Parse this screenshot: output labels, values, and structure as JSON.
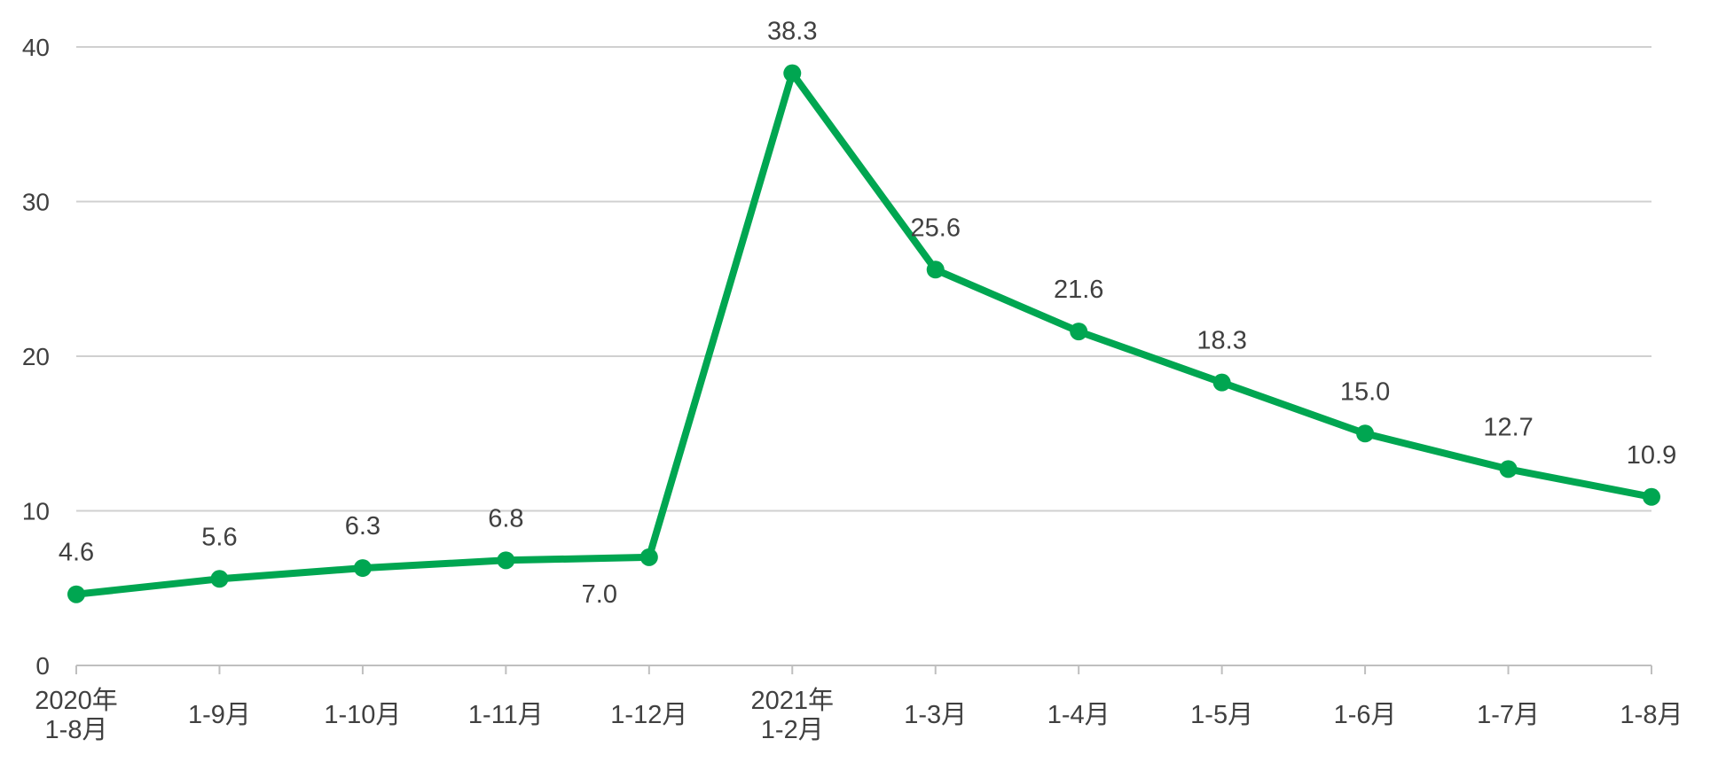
{
  "chart_data": {
    "type": "line",
    "categories": [
      [
        "2020年",
        "1-8月"
      ],
      [
        "1-9月"
      ],
      [
        "1-10月"
      ],
      [
        "1-11月"
      ],
      [
        "1-12月"
      ],
      [
        "2021年",
        "1-2月"
      ],
      [
        "1-3月"
      ],
      [
        "1-4月"
      ],
      [
        "1-5月"
      ],
      [
        "1-6月"
      ],
      [
        "1-7月"
      ],
      [
        "1-8月"
      ]
    ],
    "values": [
      4.6,
      5.6,
      6.3,
      6.8,
      7.0,
      38.3,
      25.6,
      21.6,
      18.3,
      15.0,
      12.7,
      10.9
    ],
    "data_labels": [
      "4.6",
      "5.6",
      "6.3",
      "6.8",
      "7.0",
      "38.3",
      "25.6",
      "21.6",
      "18.3",
      "15.0",
      "12.7",
      "10.9"
    ],
    "label_positions": [
      "above",
      "above",
      "above",
      "above",
      "below-left",
      "above",
      "above",
      "above",
      "above",
      "above",
      "above",
      "above"
    ],
    "y_ticks": [
      0,
      10,
      20,
      30,
      40
    ],
    "ylim": [
      0,
      40
    ],
    "grid": true,
    "legend": "none",
    "colors": {
      "line": "#00a651",
      "grid": "#d0d0d0",
      "axis": "#bfbfbf",
      "text": "#404040"
    }
  }
}
